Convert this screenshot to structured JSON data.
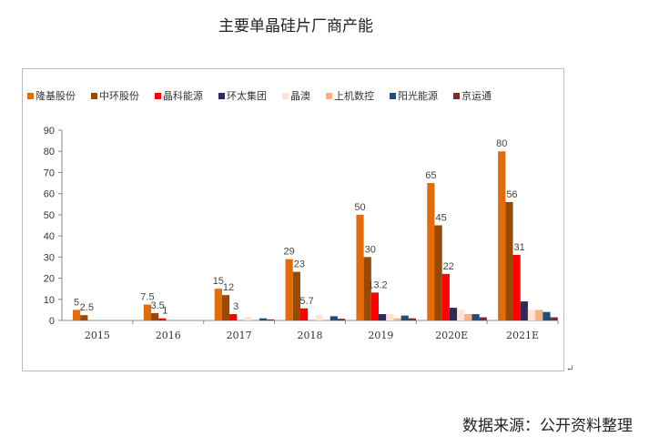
{
  "chart_data": {
    "type": "bar",
    "title": "主要单晶硅片厂商产能",
    "categories": [
      "2015",
      "2016",
      "2017",
      "2018",
      "2019",
      "2020E",
      "2021E"
    ],
    "ylim": [
      0,
      90
    ],
    "yticks": [
      "0",
      "10",
      "20",
      "30",
      "40",
      "50",
      "60",
      "70",
      "80",
      "90"
    ],
    "legend_position": "top",
    "grid": false,
    "series": [
      {
        "name": "隆基股份",
        "color": "#E36C0A",
        "values": [
          5,
          7.5,
          15,
          29,
          50,
          65,
          80
        ],
        "labels": [
          "5",
          "7.5",
          "15",
          "29",
          "50",
          "65",
          "80"
        ]
      },
      {
        "name": "中环股份",
        "color": "#984807",
        "values": [
          2.5,
          3.5,
          12,
          23,
          30,
          45,
          56
        ],
        "labels": [
          "2.5",
          "3.5",
          "12",
          "23",
          "30",
          "45",
          "56"
        ]
      },
      {
        "name": "晶科能源",
        "color": "#FF0000",
        "values": [
          0,
          1,
          3,
          5.7,
          13.2,
          22,
          31
        ],
        "labels": [
          "",
          "1",
          "3",
          "5.7",
          "13.2",
          "22",
          "31"
        ]
      },
      {
        "name": "环太集团",
        "color": "#2E2A5A",
        "values": [
          0,
          0,
          0,
          0,
          3,
          6,
          9
        ],
        "labels": []
      },
      {
        "name": "晶澳",
        "color": "#FBE4D5",
        "values": [
          0,
          0,
          1.5,
          2.5,
          3,
          5,
          5
        ],
        "labels": []
      },
      {
        "name": "上机数控",
        "color": "#F4B183",
        "values": [
          0,
          0,
          0,
          0,
          1,
          3,
          5
        ],
        "labels": []
      },
      {
        "name": "阳光能源",
        "color": "#1F4E79",
        "values": [
          0,
          0,
          1,
          2,
          2.3,
          3,
          4
        ],
        "labels": []
      },
      {
        "name": "京运通",
        "color": "#7B2C2C",
        "values": [
          0,
          0,
          0.5,
          0.8,
          1,
          1.5,
          1.5
        ],
        "labels": []
      }
    ]
  },
  "source": "数据来源：公开资料整理",
  "mark": "↵"
}
